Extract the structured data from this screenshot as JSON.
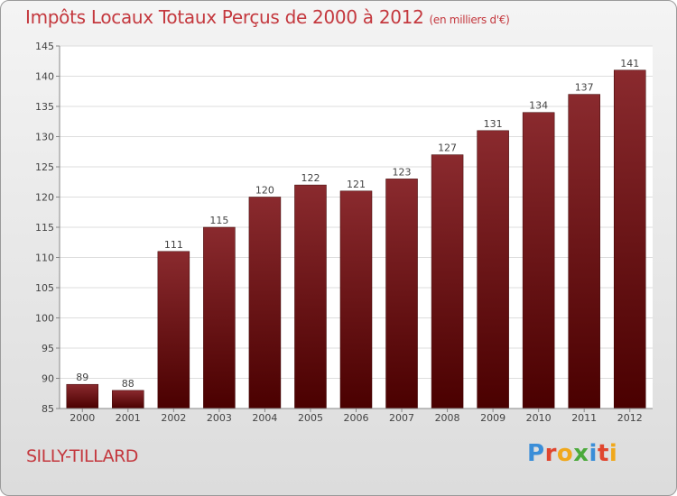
{
  "title": "Impôts Locaux Totaux Perçus de 2000 à 2012",
  "subtitle": "(en milliers d'€)",
  "commune": "SILLY-TILLARD",
  "logo": {
    "letters": [
      "P",
      "r",
      "o",
      "x",
      "i",
      "t",
      "i"
    ],
    "colors": [
      "#3b8ed8",
      "#e0452e",
      "#f0a81c",
      "#4caa3c",
      "#3b8ed8",
      "#e0452e",
      "#f0a81c"
    ]
  },
  "chart_data": {
    "type": "bar",
    "title": "Impôts Locaux Totaux Perçus de 2000 à 2012",
    "xlabel": "",
    "ylabel": "",
    "categories": [
      "2000",
      "2001",
      "2002",
      "2003",
      "2004",
      "2005",
      "2006",
      "2007",
      "2008",
      "2009",
      "2010",
      "2011",
      "2012"
    ],
    "values": [
      89,
      88,
      111,
      115,
      120,
      122,
      121,
      123,
      127,
      131,
      134,
      137,
      141
    ],
    "ylim": [
      85,
      145
    ],
    "yticks": [
      85,
      90,
      95,
      100,
      105,
      110,
      115,
      120,
      125,
      130,
      135,
      140,
      145
    ],
    "grid": true,
    "bar_color_top": "#8a2a2e",
    "bar_color_bottom": "#4a0000"
  }
}
